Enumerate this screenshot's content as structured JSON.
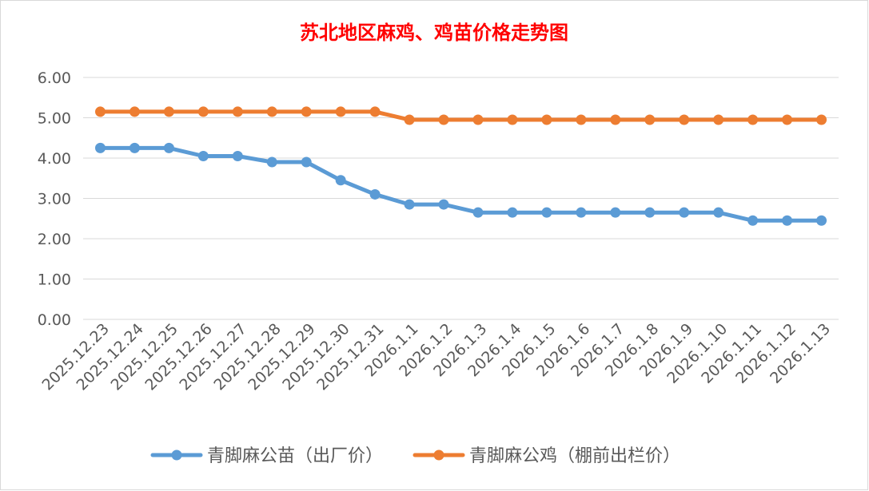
{
  "colors": {
    "series1": "#5b9bd5",
    "series2": "#ed7d31",
    "title": "#ff0000",
    "grid": "#d9d9d9",
    "axis_text": "#595959"
  },
  "chart_data": {
    "type": "line",
    "title": "苏北地区麻鸡、鸡苗价格走势图",
    "xlabel": "",
    "ylabel": "",
    "ylim": [
      0,
      6
    ],
    "yticks": [
      "0.00",
      "1.00",
      "2.00",
      "3.00",
      "4.00",
      "5.00",
      "6.00"
    ],
    "grid": true,
    "legend_position": "bottom",
    "categories": [
      "2025.12.23",
      "2025.12.24",
      "2025.12.25",
      "2025.12.26",
      "2025.12.27",
      "2025.12.28",
      "2025.12.29",
      "2025.12.30",
      "2025.12.31",
      "2026.1.1",
      "2026.1.2",
      "2026.1.3",
      "2026.1.4",
      "2026.1.5",
      "2026.1.6",
      "2026.1.7",
      "2026.1.8",
      "2026.1.9",
      "2026.1.10",
      "2026.1.11",
      "2026.1.12",
      "2026.1.13"
    ],
    "series": [
      {
        "name": "青脚麻公苗（出厂价）",
        "color": "#5b9bd5",
        "values": [
          4.25,
          4.25,
          4.25,
          4.05,
          4.05,
          3.9,
          3.9,
          3.45,
          3.1,
          2.85,
          2.85,
          2.65,
          2.65,
          2.65,
          2.65,
          2.65,
          2.65,
          2.65,
          2.65,
          2.45,
          2.45,
          2.45
        ]
      },
      {
        "name": "青脚麻公鸡（棚前出栏价）",
        "color": "#ed7d31",
        "values": [
          5.15,
          5.15,
          5.15,
          5.15,
          5.15,
          5.15,
          5.15,
          5.15,
          5.15,
          4.95,
          4.95,
          4.95,
          4.95,
          4.95,
          4.95,
          4.95,
          4.95,
          4.95,
          4.95,
          4.95,
          4.95,
          4.95
        ]
      }
    ]
  }
}
